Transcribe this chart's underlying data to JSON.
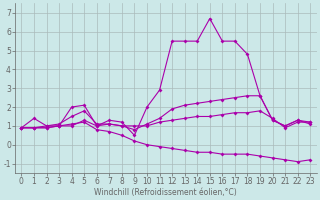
{
  "xlabel": "Windchill (Refroidissement éolien,°C)",
  "bg_color": "#cce8e8",
  "line_color": "#aa00aa",
  "grid_color": "#aabbbb",
  "axis_color": "#666666",
  "xlim": [
    -0.5,
    23.5
  ],
  "ylim": [
    -1.5,
    7.5
  ],
  "yticks": [
    -1,
    0,
    1,
    2,
    3,
    4,
    5,
    6,
    7
  ],
  "xticks": [
    0,
    1,
    2,
    3,
    4,
    5,
    6,
    7,
    8,
    9,
    10,
    11,
    12,
    13,
    14,
    15,
    16,
    17,
    18,
    19,
    20,
    21,
    22,
    23
  ],
  "series": [
    [
      0.9,
      1.4,
      1.0,
      1.0,
      2.0,
      2.1,
      1.0,
      1.3,
      1.2,
      0.5,
      2.0,
      2.9,
      5.5,
      5.5,
      5.5,
      6.7,
      5.5,
      5.5,
      4.8,
      2.6,
      1.3,
      1.0,
      1.3,
      1.2
    ],
    [
      0.9,
      0.9,
      0.9,
      1.0,
      1.0,
      1.3,
      1.0,
      1.1,
      1.0,
      1.0,
      1.0,
      1.2,
      1.3,
      1.4,
      1.5,
      1.5,
      1.6,
      1.7,
      1.7,
      1.8,
      1.4,
      0.9,
      1.2,
      1.2
    ],
    [
      0.9,
      0.9,
      1.0,
      1.1,
      1.5,
      1.8,
      1.1,
      1.1,
      1.0,
      0.8,
      1.1,
      1.4,
      1.9,
      2.1,
      2.2,
      2.3,
      2.4,
      2.5,
      2.6,
      2.6,
      1.3,
      1.0,
      1.3,
      1.1
    ],
    [
      0.9,
      0.9,
      0.9,
      1.0,
      1.1,
      1.2,
      0.8,
      0.7,
      0.5,
      0.2,
      0.0,
      -0.1,
      -0.2,
      -0.3,
      -0.4,
      -0.4,
      -0.5,
      -0.5,
      -0.5,
      -0.6,
      -0.7,
      -0.8,
      -0.9,
      -0.8
    ]
  ],
  "tick_fontsize": 5.5,
  "xlabel_fontsize": 5.5,
  "marker_size": 2.0,
  "line_width": 0.8
}
